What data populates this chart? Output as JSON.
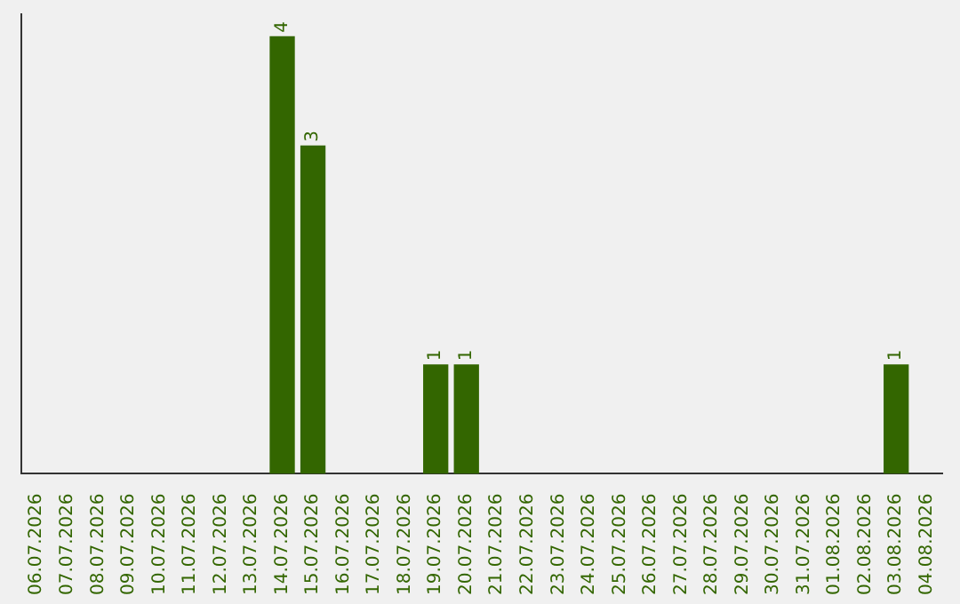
{
  "chart_data": {
    "type": "bar",
    "categories": [
      "06.07.2026",
      "07.07.2026",
      "08.07.2026",
      "09.07.2026",
      "10.07.2026",
      "11.07.2026",
      "12.07.2026",
      "13.07.2026",
      "14.07.2026",
      "15.07.2026",
      "16.07.2026",
      "17.07.2026",
      "18.07.2026",
      "19.07.2026",
      "20.07.2026",
      "21.07.2026",
      "22.07.2026",
      "23.07.2026",
      "24.07.2026",
      "25.07.2026",
      "26.07.2026",
      "27.07.2026",
      "28.07.2026",
      "29.07.2026",
      "30.07.2026",
      "31.07.2026",
      "01.08.2026",
      "02.08.2026",
      "03.08.2026",
      "04.08.2026"
    ],
    "values": [
      0,
      0,
      0,
      0,
      0,
      0,
      0,
      0,
      4,
      3,
      0,
      0,
      0,
      1,
      1,
      0,
      0,
      0,
      0,
      0,
      0,
      0,
      0,
      0,
      0,
      0,
      0,
      0,
      1,
      0
    ],
    "value_labels": [
      null,
      null,
      null,
      null,
      null,
      null,
      null,
      null,
      "4",
      "3",
      null,
      null,
      null,
      "1",
      "1",
      null,
      null,
      null,
      null,
      null,
      null,
      null,
      null,
      null,
      null,
      null,
      null,
      null,
      "1",
      null
    ],
    "color": "#336600",
    "ylim": [
      0,
      4.2
    ],
    "grid": false,
    "legend": false,
    "tick_labels": "x"
  }
}
